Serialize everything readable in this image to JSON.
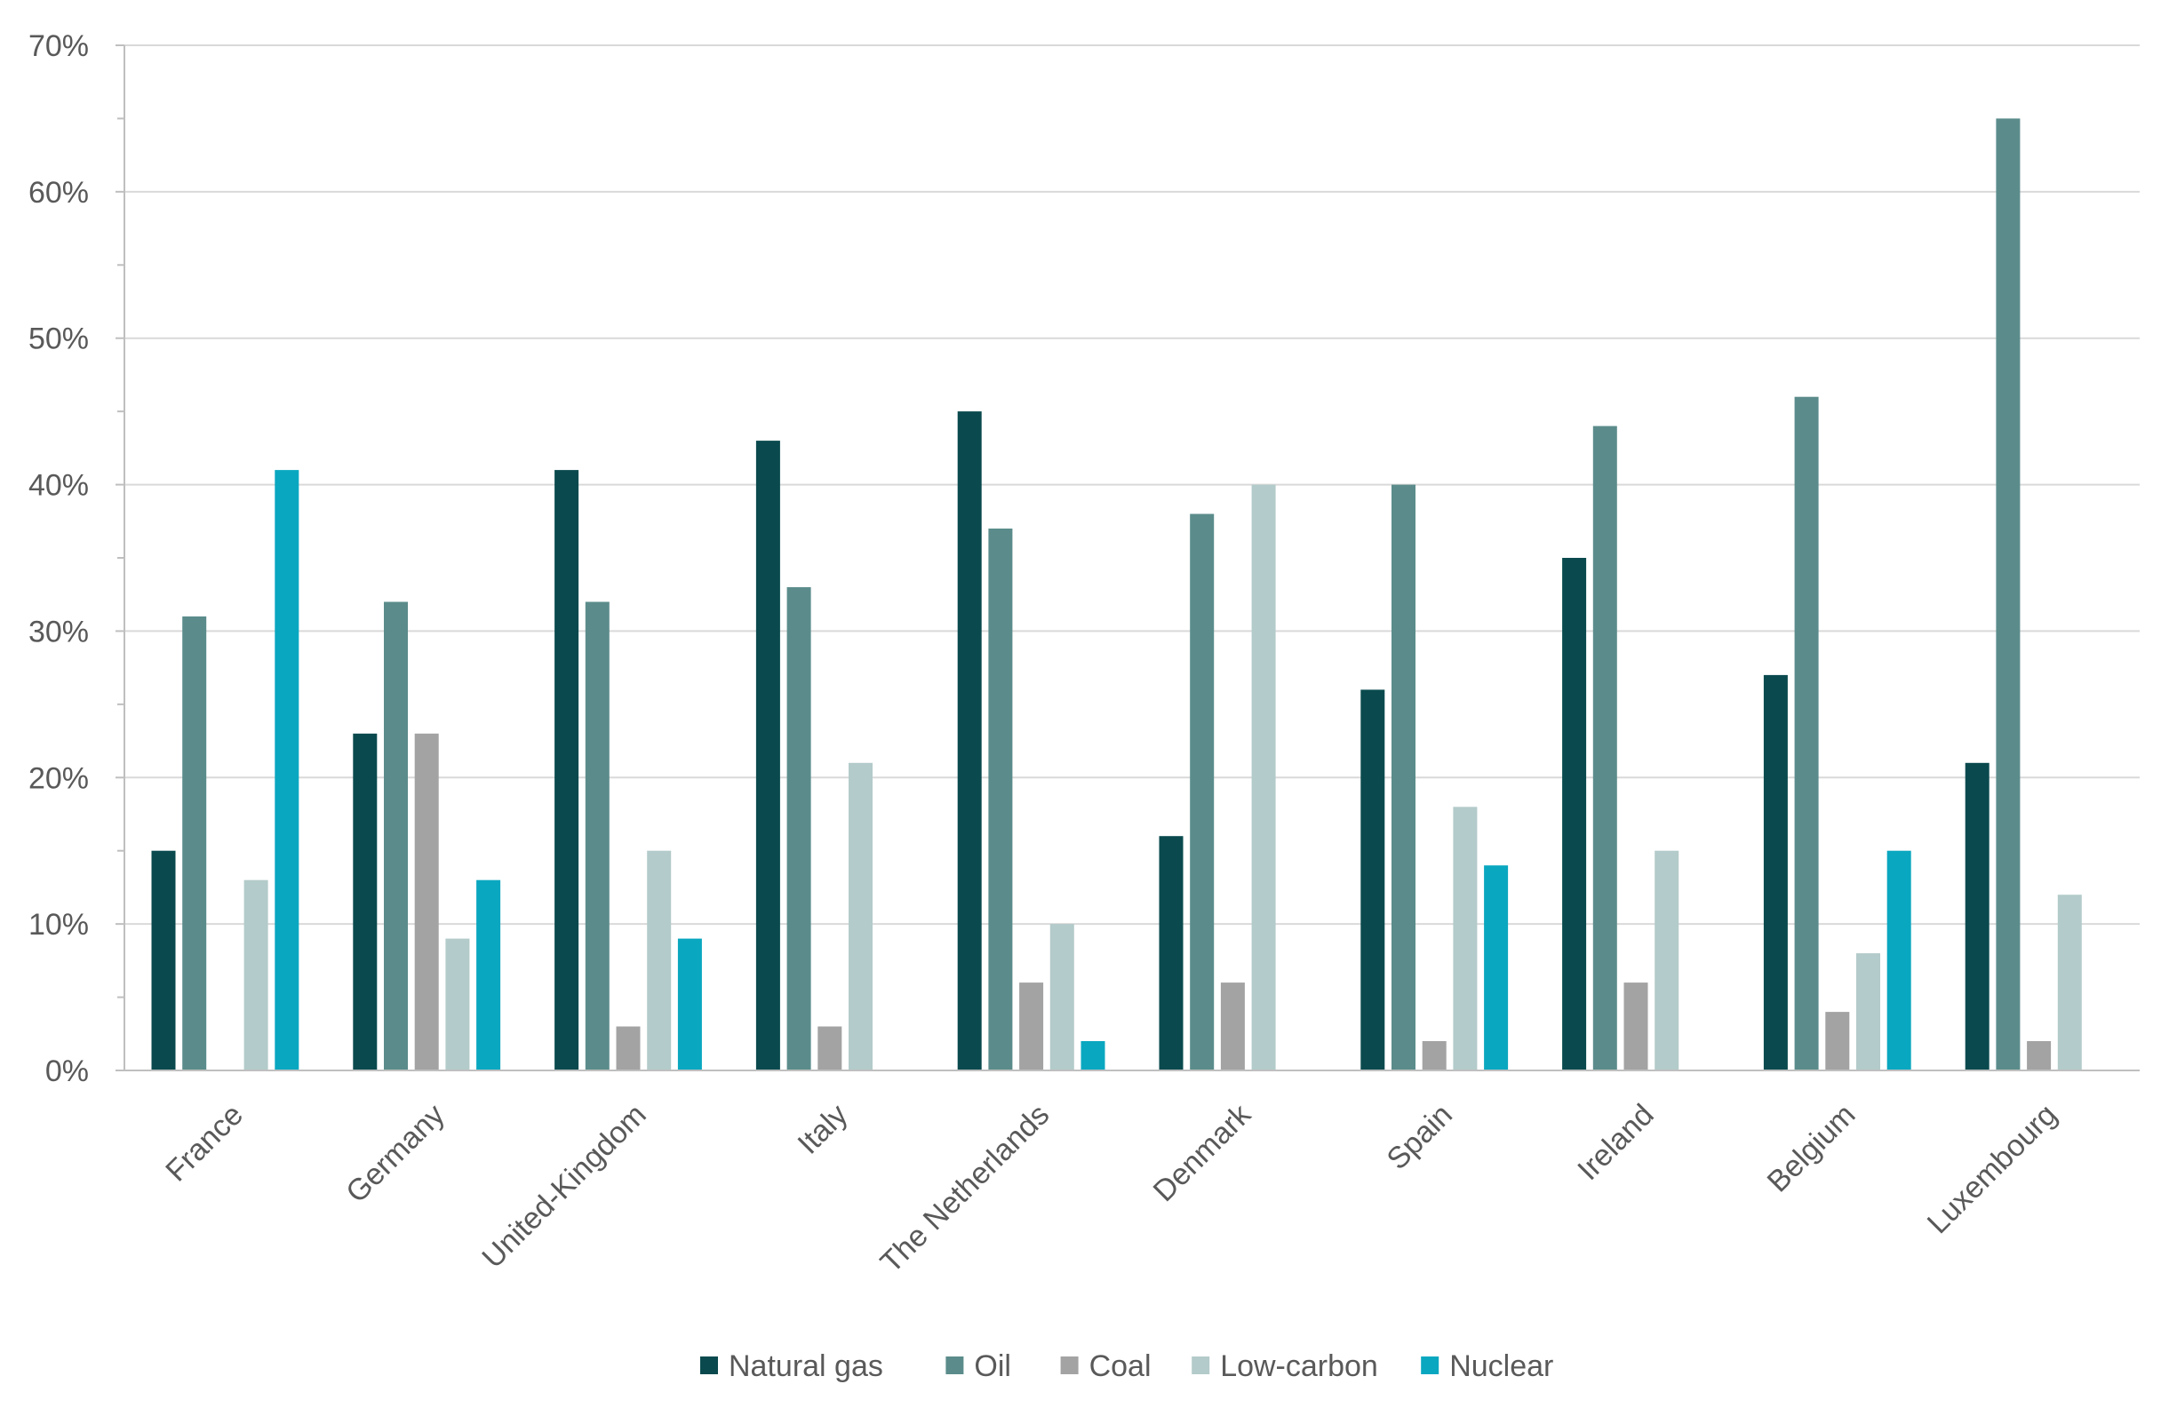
{
  "chart_data": {
    "type": "bar",
    "title": "",
    "xlabel": "",
    "ylabel": "",
    "ylim": [
      0,
      70
    ],
    "y_unit": "%",
    "y_ticks": [
      "0%",
      "10%",
      "20%",
      "30%",
      "40%",
      "50%",
      "60%",
      "70%"
    ],
    "grid": true,
    "legend_position": "bottom",
    "categories": [
      "France",
      "Germany",
      "United-Kingdom",
      "Italy",
      "The Netherlands",
      "Denmark",
      "Spain",
      "Ireland",
      "Belgium",
      "Luxembourg"
    ],
    "series": [
      {
        "name": "Natural gas",
        "color": "#0a4a4e",
        "values": [
          15,
          23,
          41,
          43,
          45,
          16,
          26,
          35,
          27,
          21
        ]
      },
      {
        "name": "Oil",
        "color": "#5b8c8b",
        "values": [
          31,
          32,
          32,
          33,
          37,
          38,
          40,
          44,
          46,
          65
        ]
      },
      {
        "name": "Coal",
        "color": "#a3a3a3",
        "values": [
          0,
          23,
          3,
          3,
          6,
          6,
          2,
          6,
          4,
          2
        ]
      },
      {
        "name": "Low-carbon",
        "color": "#b3cbca",
        "values": [
          13,
          9,
          15,
          21,
          10,
          40,
          18,
          15,
          8,
          12
        ]
      },
      {
        "name": "Nuclear",
        "color": "#0aa7c0",
        "values": [
          41,
          13,
          9,
          0,
          2,
          0,
          14,
          0,
          15,
          0
        ]
      }
    ]
  }
}
